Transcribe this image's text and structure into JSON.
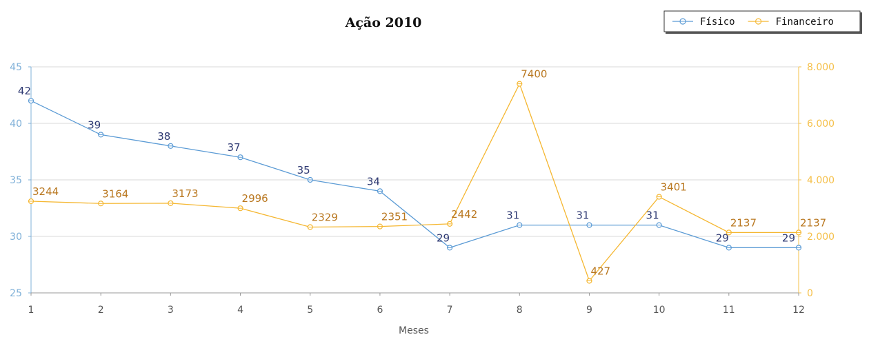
{
  "chart_data": {
    "type": "line",
    "title": "Ação 2010",
    "xlabel": "Meses",
    "x": [
      1,
      2,
      3,
      4,
      5,
      6,
      7,
      8,
      9,
      10,
      11,
      12
    ],
    "x_tick_labels": [
      "1",
      "2",
      "3",
      "4",
      "5",
      "6",
      "7",
      "8",
      "9",
      "10",
      "11",
      "12"
    ],
    "y_left": {
      "ylim": [
        25,
        45
      ],
      "ticks": [
        25,
        30,
        35,
        40,
        45
      ],
      "tick_labels": [
        "25",
        "30",
        "35",
        "40",
        "45"
      ]
    },
    "y_right": {
      "ylim": [
        0,
        8000
      ],
      "ticks": [
        0,
        2000,
        4000,
        6000,
        8000
      ],
      "tick_labels": [
        "0",
        "2.000",
        "4.000",
        "6.000",
        "8.000"
      ]
    },
    "grid": true,
    "legend_position": "top-right",
    "series": [
      {
        "name": "Físico",
        "axis": "left",
        "color": "#5b9bd5",
        "label_color": "#2f3a73",
        "values": [
          42,
          39,
          38,
          37,
          35,
          34,
          29,
          31,
          31,
          31,
          29,
          29
        ],
        "labels": [
          "42",
          "39",
          "38",
          "37",
          "35",
          "34",
          "29",
          "31",
          "31",
          "31",
          "29",
          "29"
        ]
      },
      {
        "name": "Financeiro",
        "axis": "right",
        "color": "#f5b731",
        "label_color": "#b9771f",
        "values": [
          3244,
          3164,
          3173,
          2996,
          2329,
          2351,
          2442,
          7400,
          427,
          3401,
          2137,
          2137
        ],
        "labels": [
          "3244",
          "3164",
          "3173",
          "2996",
          "2329",
          "2351",
          "2442",
          "7400",
          "427",
          "3401",
          "2137",
          "2137"
        ]
      }
    ],
    "axis_colors": {
      "left": "#7fb0d8",
      "right": "#f5c04a",
      "bottom": "#999999",
      "grid": "#d9d9d9"
    }
  }
}
